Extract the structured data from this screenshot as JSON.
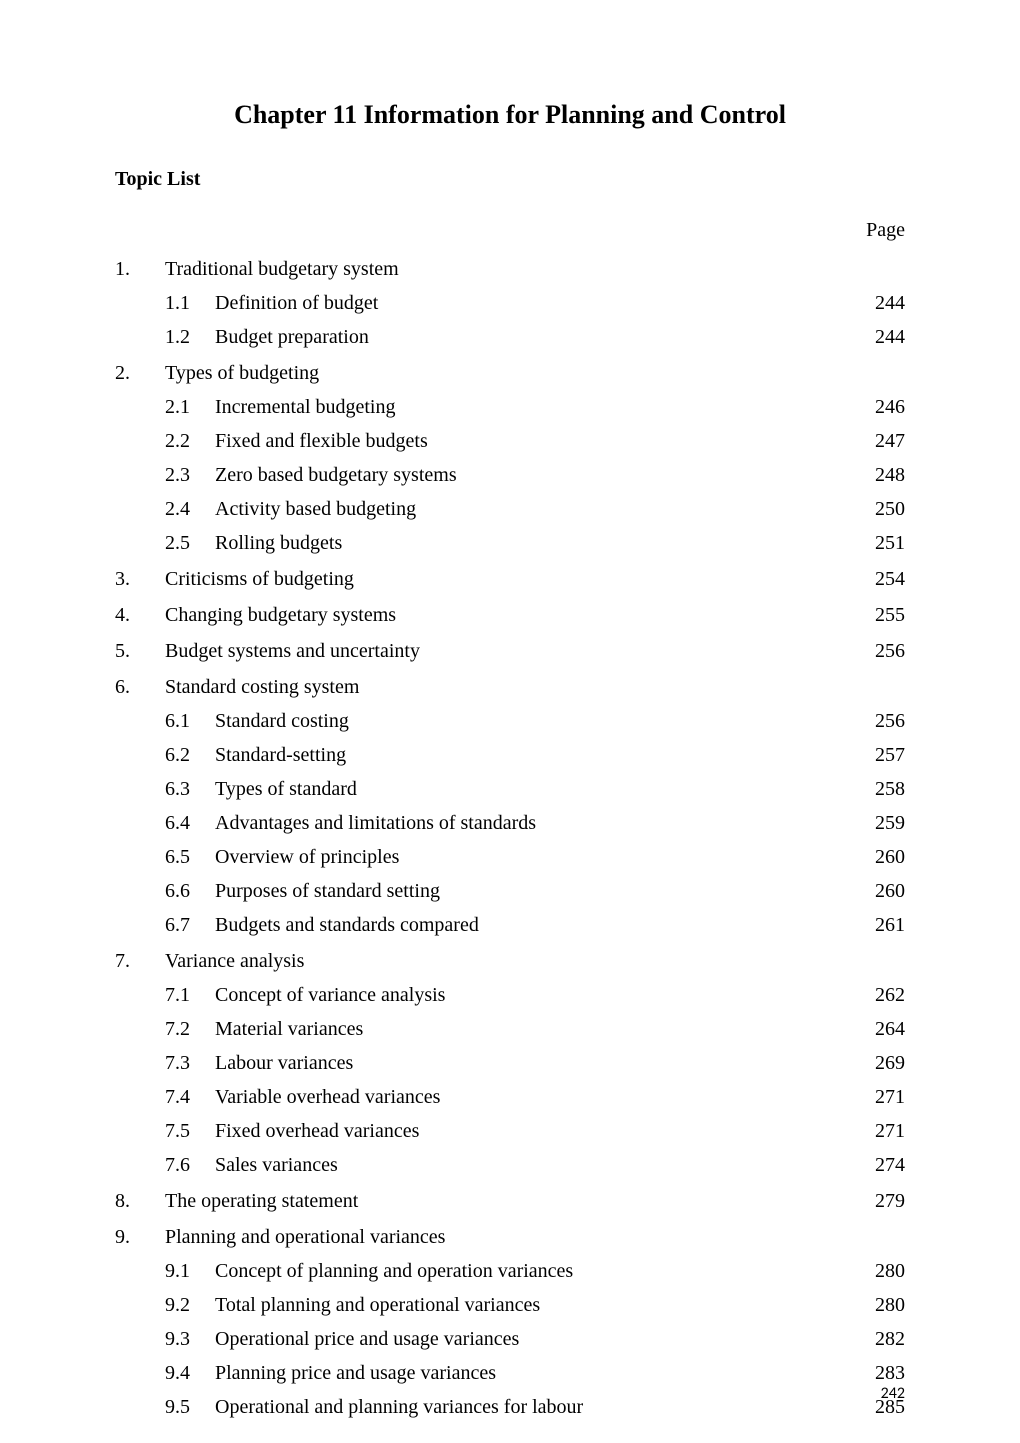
{
  "chapter_title": "Chapter 11 Information for Planning and Control",
  "topic_list_heading": "Topic List",
  "page_label": "Page",
  "page_number": "242",
  "sections": [
    {
      "number": "1.",
      "title": "Traditional budgetary system",
      "page": "",
      "subsections": [
        {
          "number": "1.1",
          "title": "Definition of budget",
          "page": "244"
        },
        {
          "number": "1.2",
          "title": "Budget preparation",
          "page": "244"
        }
      ]
    },
    {
      "number": "2.",
      "title": "Types of budgeting",
      "page": "",
      "subsections": [
        {
          "number": "2.1",
          "title": "Incremental budgeting",
          "page": "246"
        },
        {
          "number": "2.2",
          "title": "Fixed and flexible budgets",
          "page": "247"
        },
        {
          "number": "2.3",
          "title": "Zero based budgetary systems",
          "page": "248"
        },
        {
          "number": "2.4",
          "title": "Activity based budgeting",
          "page": "250"
        },
        {
          "number": "2.5",
          "title": "Rolling budgets",
          "page": "251"
        }
      ]
    },
    {
      "number": "3.",
      "title": "Criticisms of budgeting",
      "page": "254",
      "subsections": []
    },
    {
      "number": "4.",
      "title": "Changing budgetary systems",
      "page": "255",
      "subsections": []
    },
    {
      "number": "5.",
      "title": "Budget systems and uncertainty",
      "page": "256",
      "subsections": []
    },
    {
      "number": "6.",
      "title": "Standard costing system",
      "page": "",
      "subsections": [
        {
          "number": "6.1",
          "title": "Standard costing",
          "page": "256"
        },
        {
          "number": "6.2",
          "title": "Standard-setting",
          "page": "257"
        },
        {
          "number": "6.3",
          "title": "Types of standard",
          "page": "258"
        },
        {
          "number": "6.4",
          "title": "Advantages and limitations of standards",
          "page": "259"
        },
        {
          "number": "6.5",
          "title": "Overview of principles",
          "page": "260"
        },
        {
          "number": "6.6",
          "title": "Purposes of standard setting",
          "page": "260"
        },
        {
          "number": "6.7",
          "title": "Budgets and standards compared",
          "page": "261"
        }
      ]
    },
    {
      "number": "7.",
      "title": "Variance analysis",
      "page": "",
      "subsections": [
        {
          "number": "7.1",
          "title": "Concept of variance analysis",
          "page": "262"
        },
        {
          "number": "7.2",
          "title": "Material variances",
          "page": "264"
        },
        {
          "number": "7.3",
          "title": "Labour variances",
          "page": "269"
        },
        {
          "number": "7.4",
          "title": "Variable overhead variances",
          "page": "271"
        },
        {
          "number": "7.5",
          "title": "Fixed overhead variances",
          "page": "271"
        },
        {
          "number": "7.6",
          "title": "Sales variances",
          "page": "274"
        }
      ]
    },
    {
      "number": "8.",
      "title": "The operating statement",
      "page": "279",
      "subsections": []
    },
    {
      "number": "9.",
      "title": "Planning and operational variances",
      "page": "",
      "subsections": [
        {
          "number": "9.1",
          "title": "Concept of planning and operation variances",
          "page": "280"
        },
        {
          "number": "9.2",
          "title": "Total planning and operational variances",
          "page": "280"
        },
        {
          "number": "9.3",
          "title": "Operational price and usage variances",
          "page": "282"
        },
        {
          "number": "9.4",
          "title": "Planning price and usage variances",
          "page": "283"
        },
        {
          "number": "9.5",
          "title": "Operational and planning variances for labour",
          "page": "285"
        }
      ]
    }
  ]
}
